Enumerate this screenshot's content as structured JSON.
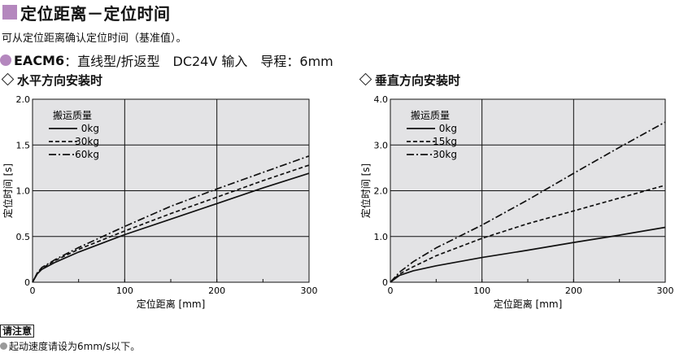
{
  "page": {
    "title": "定位距离－定位时间",
    "description": "可从定位距离确认定位时间（基准值）。",
    "model_name": "EACM6",
    "model_spec": "：直线型/折返型　DC24V 输入　导程：6mm",
    "notice_label": "请注意",
    "notice_text": "起动速度请设为6mm/s以下。"
  },
  "colors": {
    "accent": "#b487be",
    "plot_bg": "#e3e3e5",
    "line": "#111111"
  },
  "chart_data": [
    {
      "type": "line",
      "title": "水平方向安装时",
      "xlabel": "定位距离 [mm]",
      "ylabel": "定位时间 [s]",
      "xlim": [
        0,
        300
      ],
      "ylim": [
        0,
        2.0
      ],
      "x_ticks": [
        0,
        100,
        200,
        300
      ],
      "y_ticks": [
        0,
        0.5,
        1.0,
        1.5,
        2.0
      ],
      "x_tick_labels": [
        "0",
        "100",
        "200",
        "300"
      ],
      "y_tick_labels": [
        "0",
        "0.5",
        "1.0",
        "1.5",
        "2.0"
      ],
      "grid": true,
      "legend_title": "搬运质量",
      "legend_position": "top-left",
      "series": [
        {
          "name": "0kg",
          "style": "solid",
          "x": [
            0,
            5,
            10,
            25,
            50,
            100,
            150,
            200,
            250,
            300
          ],
          "y": [
            0,
            0.09,
            0.14,
            0.22,
            0.33,
            0.52,
            0.69,
            0.86,
            1.03,
            1.19
          ]
        },
        {
          "name": "30kg",
          "style": "dashed",
          "x": [
            0,
            5,
            10,
            25,
            50,
            100,
            150,
            200,
            250,
            300
          ],
          "y": [
            0,
            0.1,
            0.15,
            0.24,
            0.36,
            0.56,
            0.75,
            0.93,
            1.11,
            1.28
          ]
        },
        {
          "name": "60kg",
          "style": "dashdot",
          "x": [
            0,
            5,
            10,
            25,
            50,
            100,
            150,
            200,
            250,
            300
          ],
          "y": [
            0,
            0.1,
            0.16,
            0.25,
            0.38,
            0.61,
            0.83,
            1.02,
            1.2,
            1.38
          ]
        }
      ]
    },
    {
      "type": "line",
      "title": "垂直方向安装时",
      "xlabel": "定位距离 [mm]",
      "ylabel": "定位时间 [s]",
      "xlim": [
        0,
        300
      ],
      "ylim": [
        0,
        4.0
      ],
      "x_ticks": [
        0,
        100,
        200,
        300
      ],
      "y_ticks": [
        0,
        1.0,
        2.0,
        3.0,
        4.0
      ],
      "x_tick_labels": [
        "0",
        "100",
        "200",
        "300"
      ],
      "y_tick_labels": [
        "0",
        "1.0",
        "2.0",
        "3.0",
        "4.0"
      ],
      "grid": true,
      "legend_title": "搬运质量",
      "legend_position": "top-left",
      "series": [
        {
          "name": "0kg",
          "style": "solid",
          "x": [
            0,
            10,
            25,
            50,
            100,
            150,
            200,
            250,
            300
          ],
          "y": [
            0,
            0.15,
            0.25,
            0.36,
            0.54,
            0.7,
            0.87,
            1.03,
            1.2
          ]
        },
        {
          "name": "15kg",
          "style": "dashed",
          "x": [
            0,
            10,
            25,
            50,
            100,
            150,
            200,
            250,
            300
          ],
          "y": [
            0,
            0.18,
            0.34,
            0.58,
            0.96,
            1.28,
            1.56,
            1.84,
            2.12
          ]
        },
        {
          "name": "30kg",
          "style": "dashdot",
          "x": [
            0,
            10,
            25,
            50,
            100,
            150,
            200,
            250,
            300
          ],
          "y": [
            0,
            0.22,
            0.45,
            0.75,
            1.25,
            1.8,
            2.38,
            2.95,
            3.5
          ]
        }
      ]
    }
  ]
}
